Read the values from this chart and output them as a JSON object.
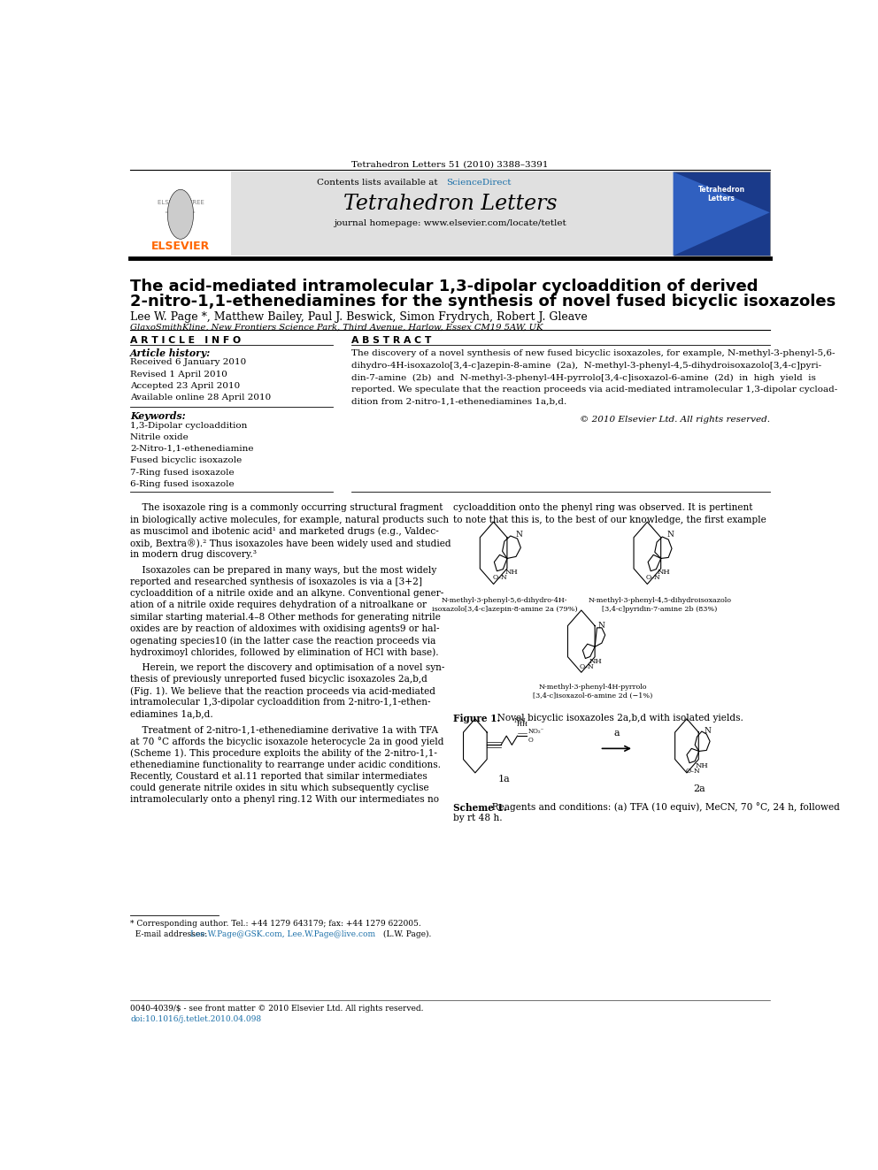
{
  "page_width": 9.92,
  "page_height": 13.23,
  "bg_color": "#ffffff",
  "journal_ref": "Tetrahedron Letters 51 (2010) 3388–3391",
  "header_bg": "#e8e8e8",
  "elsevier_text": "ELSEVIER",
  "elsevier_color": "#FF6600",
  "contents_text": "Contents lists available at",
  "sciencedirect_text": "ScienceDirect",
  "sciencedirect_color": "#1a6fa8",
  "journal_name": "Tetrahedron Letters",
  "homepage_text": "journal homepage: www.elsevier.com/locate/tetlet",
  "title_line1": "The acid-mediated intramolecular 1,3-dipolar cycloaddition of derived",
  "title_line2": "2-nitro-1,1-ethenediamines for the synthesis of novel fused bicyclic isoxazoles",
  "authors": "Lee W. Page *, Matthew Bailey, Paul J. Beswick, Simon Frydrych, Robert J. Gleave",
  "affiliation": "GlaxoSmithKline, New Frontiers Science Park, Third Avenue, Harlow, Essex CM19 5AW, UK",
  "article_info_title": "A R T I C L E   I N F O",
  "article_history_title": "Article history:",
  "received": "Received 6 January 2010",
  "revised": "Revised 1 April 2010",
  "accepted": "Accepted 23 April 2010",
  "available": "Available online 28 April 2010",
  "keywords_title": "Keywords:",
  "keywords": [
    "1,3-Dipolar cycloaddition",
    "Nitrile oxide",
    "2-Nitro-1,1-ethenediamine",
    "Fused bicyclic isoxazole",
    "7-Ring fused isoxazole",
    "6-Ring fused isoxazole"
  ],
  "abstract_title": "A B S T R A C T",
  "abstract_lines": [
    "The discovery of a novel synthesis of new fused bicyclic isoxazoles, for example, N-methyl-3-phenyl-5,6-",
    "dihydro-4H-isoxazolo[3,4-c]azepin-8-amine  (2a),  N-methyl-3-phenyl-4,5-dihydroisoxazolo[3,4-c]pyri-",
    "din-7-amine  (2b)  and  N-methyl-3-phenyl-4H-pyrrolo[3,4-c]isoxazol-6-amine  (2d)  in  high  yield  is",
    "reported. We speculate that the reaction proceeds via acid-mediated intramolecular 1,3-dipolar cycload-",
    "dition from 2-nitro-1,1-ethenediamines 1a,b,d."
  ],
  "copyright": "© 2010 Elsevier Ltd. All rights reserved.",
  "body_col1_lines": [
    [
      "    The isoxazole ring is a commonly occurring structural fragment",
      0.597
    ],
    [
      "in biologically active molecules, for example, natural products such",
      0.584
    ],
    [
      "as muscimol and ibotenic acid¹ and marketed drugs (e.g., Valdec-",
      0.571
    ],
    [
      "oxib, Bextra®).² Thus isoxazoles have been widely used and studied",
      0.558
    ],
    [
      "in modern drug discovery.³",
      0.545
    ],
    [
      "    Isoxazoles can be prepared in many ways, but the most widely",
      0.528
    ],
    [
      "reported and researched synthesis of isoxazoles is via a [3+2]",
      0.515
    ],
    [
      "cycloaddition of a nitrile oxide and an alkyne. Conventional gener-",
      0.502
    ],
    [
      "ation of a nitrile oxide requires dehydration of a nitroalkane or",
      0.489
    ],
    [
      "similar starting material.4–8 Other methods for generating nitrile",
      0.476
    ],
    [
      "oxides are by reaction of aldoximes with oxidising agents9 or hal-",
      0.463
    ],
    [
      "ogenating species10 (in the latter case the reaction proceeds via",
      0.45
    ],
    [
      "hydroximoyl chlorides, followed by elimination of HCl with base).",
      0.437
    ],
    [
      "    Herein, we report the discovery and optimisation of a novel syn-",
      0.42
    ],
    [
      "thesis of previously unreported fused bicyclic isoxazoles 2a,b,d",
      0.407
    ],
    [
      "(Fig. 1). We believe that the reaction proceeds via acid-mediated",
      0.394
    ],
    [
      "intramolecular 1,3-dipolar cycloaddition from 2-nitro-1,1-ethen-",
      0.381
    ],
    [
      "ediamines 1a,b,d.",
      0.368
    ],
    [
      "    Treatment of 2-nitro-1,1-ethenediamine derivative 1a with TFA",
      0.351
    ],
    [
      "at 70 °C affords the bicyclic isoxazole heterocycle 2a in good yield",
      0.338
    ],
    [
      "(Scheme 1). This procedure exploits the ability of the 2-nitro-1,1-",
      0.325
    ],
    [
      "ethenediamine functionality to rearrange under acidic conditions.",
      0.312
    ],
    [
      "Recently, Coustard et al.11 reported that similar intermediates",
      0.299
    ],
    [
      "could generate nitrile oxides in situ which subsequently cyclise",
      0.286
    ],
    [
      "intramolecularly onto a phenyl ring.12 With our intermediates no",
      0.273
    ]
  ],
  "body_col2_lines": [
    [
      "cycloaddition onto the phenyl ring was observed. It is pertinent",
      0.597
    ],
    [
      "to note that this is, to the best of our knowledge, the first example",
      0.584
    ]
  ],
  "fig1_label1a": "N-methyl-3-phenyl-5,6-dihydro-4H-",
  "fig1_label1b": "isoxazolo[3,4-c]azepin-8-amine 2a (79%)",
  "fig1_label2a": "N-methyl-3-phenyl-4,5-dihydroisoxazolo",
  "fig1_label2b": "[3,4-c]pyridin-7-amine 2b (83%)",
  "fig1_label3a": "N-methyl-3-phenyl-4H-pyrrolo",
  "fig1_label3b": "[3,4-c]isoxazol-6-amine 2d (−1%)",
  "fig1_caption_bold": "Figure 1.",
  "fig1_caption_rest": "  Novel bicyclic isoxazoles 2a,b,d with isolated yields.",
  "scheme1_label1": "1a",
  "scheme1_label2": "2a",
  "scheme1_caption_bold": "Scheme 1.",
  "scheme1_caption_rest": "  Reagents and conditions: (a) TFA (10 equiv), MeCN, 70 °C, 24 h, followed",
  "scheme1_caption_rest2": "by rt 48 h.",
  "footer_left1": "* Corresponding author. Tel.: +44 1279 643179; fax: +44 1279 622005.",
  "footer_email_pre": "  E-mail addresses: ",
  "footer_email_link": "Lee.W.Page@GSK.com, Lee.W.Page@live.com",
  "footer_email_post": " (L.W. Page).",
  "footer_bottom1": "0040-4039/$ - see front matter © 2010 Elsevier Ltd. All rights reserved.",
  "footer_bottom2": "doi:10.1016/j.tetlet.2010.04.098",
  "link_color": "#1a6fa8",
  "elsevier_orange": "#FF6600"
}
